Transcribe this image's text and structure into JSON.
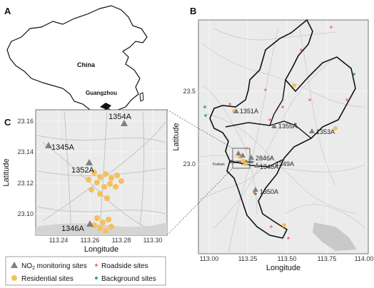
{
  "panels": {
    "a": "A",
    "b": "B",
    "c": "C"
  },
  "panel_a": {
    "country_label": "China",
    "city_label": "Guangzhou"
  },
  "panel_b": {
    "xlabel": "Longitude",
    "ylabel": "Latitude",
    "x_ticks": [
      "113.00",
      "113.25",
      "113.50",
      "113.75",
      "114.00"
    ],
    "y_ticks": [
      "23.5",
      "23.0"
    ],
    "inset_box_label": "Guangzhou",
    "place_label": "Foshan",
    "sites": [
      {
        "id": "1351A"
      },
      {
        "id": "1355A"
      },
      {
        "id": "1353A"
      },
      {
        "id": "2846A"
      },
      {
        "id": "1348A"
      },
      {
        "id": "1349A"
      },
      {
        "id": "1350A"
      }
    ]
  },
  "panel_c": {
    "xlabel": "Longitude",
    "ylabel": "Latitude",
    "x_ticks": [
      "113.24",
      "113.26",
      "113.28",
      "113.30"
    ],
    "y_ticks": [
      "23.16",
      "23.14",
      "23.12",
      "23.10"
    ],
    "sites": [
      {
        "id": "1354A"
      },
      {
        "id": "1345A"
      },
      {
        "id": "1352A"
      },
      {
        "id": "1346A"
      }
    ]
  },
  "legend": {
    "no2_prefix": "NO",
    "no2_sub": "2",
    "no2_suffix": " monitoring sites",
    "roadside": "Roadside sites",
    "residential": "Residential sites",
    "background": "Background sites"
  },
  "colors": {
    "monitoring": "#808080",
    "roadside": "#f08070",
    "residential": "#f5c05a",
    "background": "#3aa65a",
    "map_bg": "#eeeeee"
  }
}
